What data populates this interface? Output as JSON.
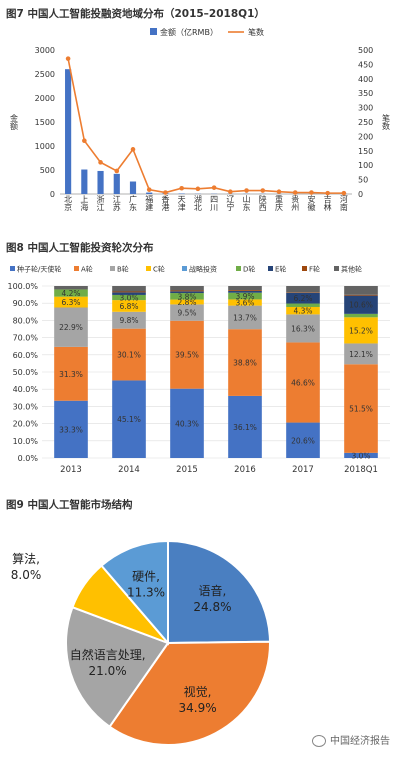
{
  "figures": {
    "fig7_title": "图7   中国人工智能投融资地域分布（2015–2018Q1）",
    "fig8_title": "图8   中国人工智能投资轮次分布",
    "fig9_title": "图9   中国人工智能市场结构"
  },
  "watermark": "中国经济报告",
  "colors": {
    "blue": "#4472C4",
    "orange": "#ED7D31",
    "gray": "#A5A5A5",
    "yellow": "#FFC000",
    "lightblue": "#5B9BD5",
    "green": "#70AD47",
    "navy": "#264478",
    "brown": "#9E480E",
    "darkgray": "#636363"
  },
  "chart_data": [
    {
      "type": "bar",
      "categories": [
        "北京",
        "上海",
        "浙江",
        "江苏",
        "广东",
        "福建",
        "香港",
        "天津",
        "湖北",
        "四川",
        "辽宁",
        "山东",
        "陕西",
        "重庆",
        "贵州",
        "安徽",
        "吉林",
        "河南"
      ],
      "series": [
        {
          "name": "金额（亿RMB）",
          "type": "bar",
          "axis": "left",
          "values": [
            2600,
            510,
            480,
            420,
            260,
            30,
            15,
            10,
            5,
            5,
            5,
            5,
            5,
            3,
            3,
            3,
            2,
            2
          ]
        },
        {
          "name": "笔数",
          "type": "line",
          "axis": "right",
          "values": [
            470,
            185,
            110,
            80,
            155,
            15,
            5,
            20,
            18,
            22,
            8,
            12,
            12,
            8,
            5,
            5,
            3,
            3
          ]
        }
      ],
      "ylabel": "金额",
      "ylabel_right": "笔数",
      "ylim": [
        0,
        3000
      ],
      "yticks": [
        0,
        500,
        1000,
        1500,
        2000,
        2500,
        3000
      ],
      "ylim_right": [
        0,
        500
      ],
      "yticks_right": [
        0,
        50,
        100,
        150,
        200,
        250,
        300,
        350,
        400,
        450,
        500
      ],
      "legend": "top-center"
    },
    {
      "type": "bar",
      "stacked": true,
      "categories": [
        "2013",
        "2014",
        "2015",
        "2016",
        "2017",
        "2018Q1"
      ],
      "series": [
        {
          "name": "种子轮/天使轮",
          "values": [
            33.3,
            45.1,
            40.3,
            36.1,
            20.6,
            3.0
          ]
        },
        {
          "name": "A轮",
          "values": [
            31.3,
            30.1,
            39.5,
            38.8,
            46.6,
            51.5
          ]
        },
        {
          "name": "B轮",
          "values": [
            22.9,
            9.8,
            9.5,
            13.7,
            16.3,
            12.1
          ]
        },
        {
          "name": "C轮",
          "values": [
            6.3,
            6.8,
            2.8,
            3.6,
            4.3,
            15.2
          ]
        },
        {
          "name": "战略投资",
          "values": [
            0,
            0,
            0,
            0,
            0,
            0
          ]
        },
        {
          "name": "D轮",
          "values": [
            4.2,
            3.0,
            3.8,
            3.9,
            2.0,
            2.0
          ]
        },
        {
          "name": "E轮",
          "values": [
            0,
            1.5,
            1.0,
            1.0,
            6.2,
            10.6
          ]
        },
        {
          "name": "F轮",
          "values": [
            0,
            0.5,
            0.5,
            0.5,
            0.3,
            0.5
          ]
        },
        {
          "name": "其他轮",
          "values": [
            2.0,
            3.2,
            2.6,
            2.4,
            3.7,
            5.1
          ]
        }
      ],
      "labels": [
        [
          "33.3%",
          "31.3%",
          "22.9%",
          "6.3%",
          "",
          "4.2%",
          "",
          "",
          ""
        ],
        [
          "45.1%",
          "30.1%",
          "9.8%",
          "6.8%",
          "",
          "3.0%",
          "",
          "",
          ""
        ],
        [
          "40.3%",
          "39.5%",
          "9.5%",
          "2.8%",
          "",
          "3.8%",
          "",
          "",
          ""
        ],
        [
          "36.1%",
          "38.8%",
          "13.7%",
          "3.6%",
          "",
          "3.9%",
          "",
          "",
          ""
        ],
        [
          "20.6%",
          "46.6%",
          "16.3%",
          "4.3%",
          "",
          "",
          "6.2%",
          "",
          ""
        ],
        [
          "3.0%",
          "51.5%",
          "12.1%",
          "15.2%",
          "",
          "",
          "10.6%",
          "",
          ""
        ]
      ],
      "ylim": [
        0,
        100
      ],
      "yticks": [
        "0.0%",
        "10.0%",
        "20.0%",
        "30.0%",
        "40.0%",
        "50.0%",
        "60.0%",
        "70.0%",
        "80.0%",
        "90.0%",
        "100.0%"
      ],
      "legend": "top"
    },
    {
      "type": "pie",
      "slices": [
        {
          "label": "语音,",
          "pct": "24.8%",
          "value": 24.8
        },
        {
          "label": "视觉,",
          "pct": "34.9%",
          "value": 34.9
        },
        {
          "label": "自然语言处理,",
          "pct": "21.0%",
          "value": 21.0
        },
        {
          "label": "算法,",
          "pct": "8.0%",
          "value": 8.0
        },
        {
          "label": "硬件,",
          "pct": "11.3%",
          "value": 11.3
        }
      ]
    }
  ]
}
